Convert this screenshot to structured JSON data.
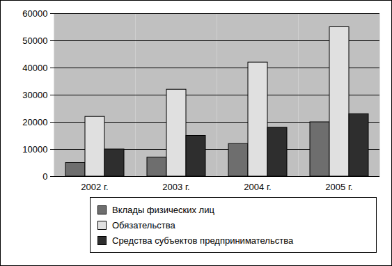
{
  "chart_data": {
    "type": "bar",
    "categories": [
      "2002 г.",
      "2003 г.",
      "2004 г.",
      "2005 г."
    ],
    "series": [
      {
        "name": "Вклады физических лиц",
        "color": "#6e6e6e",
        "values": [
          5000,
          7000,
          12000,
          20000
        ]
      },
      {
        "name": "Обязательства",
        "color": "#e0e0e0",
        "values": [
          22000,
          32000,
          42000,
          55000
        ]
      },
      {
        "name": "Средства субъектов предпринимательства",
        "color": "#2e2e2e",
        "values": [
          10000,
          15000,
          18000,
          23000
        ]
      }
    ],
    "ylim": [
      0,
      60000
    ],
    "yticks": [
      0,
      10000,
      20000,
      30000,
      40000,
      50000,
      60000
    ],
    "grid": true,
    "legend": "bottom"
  }
}
